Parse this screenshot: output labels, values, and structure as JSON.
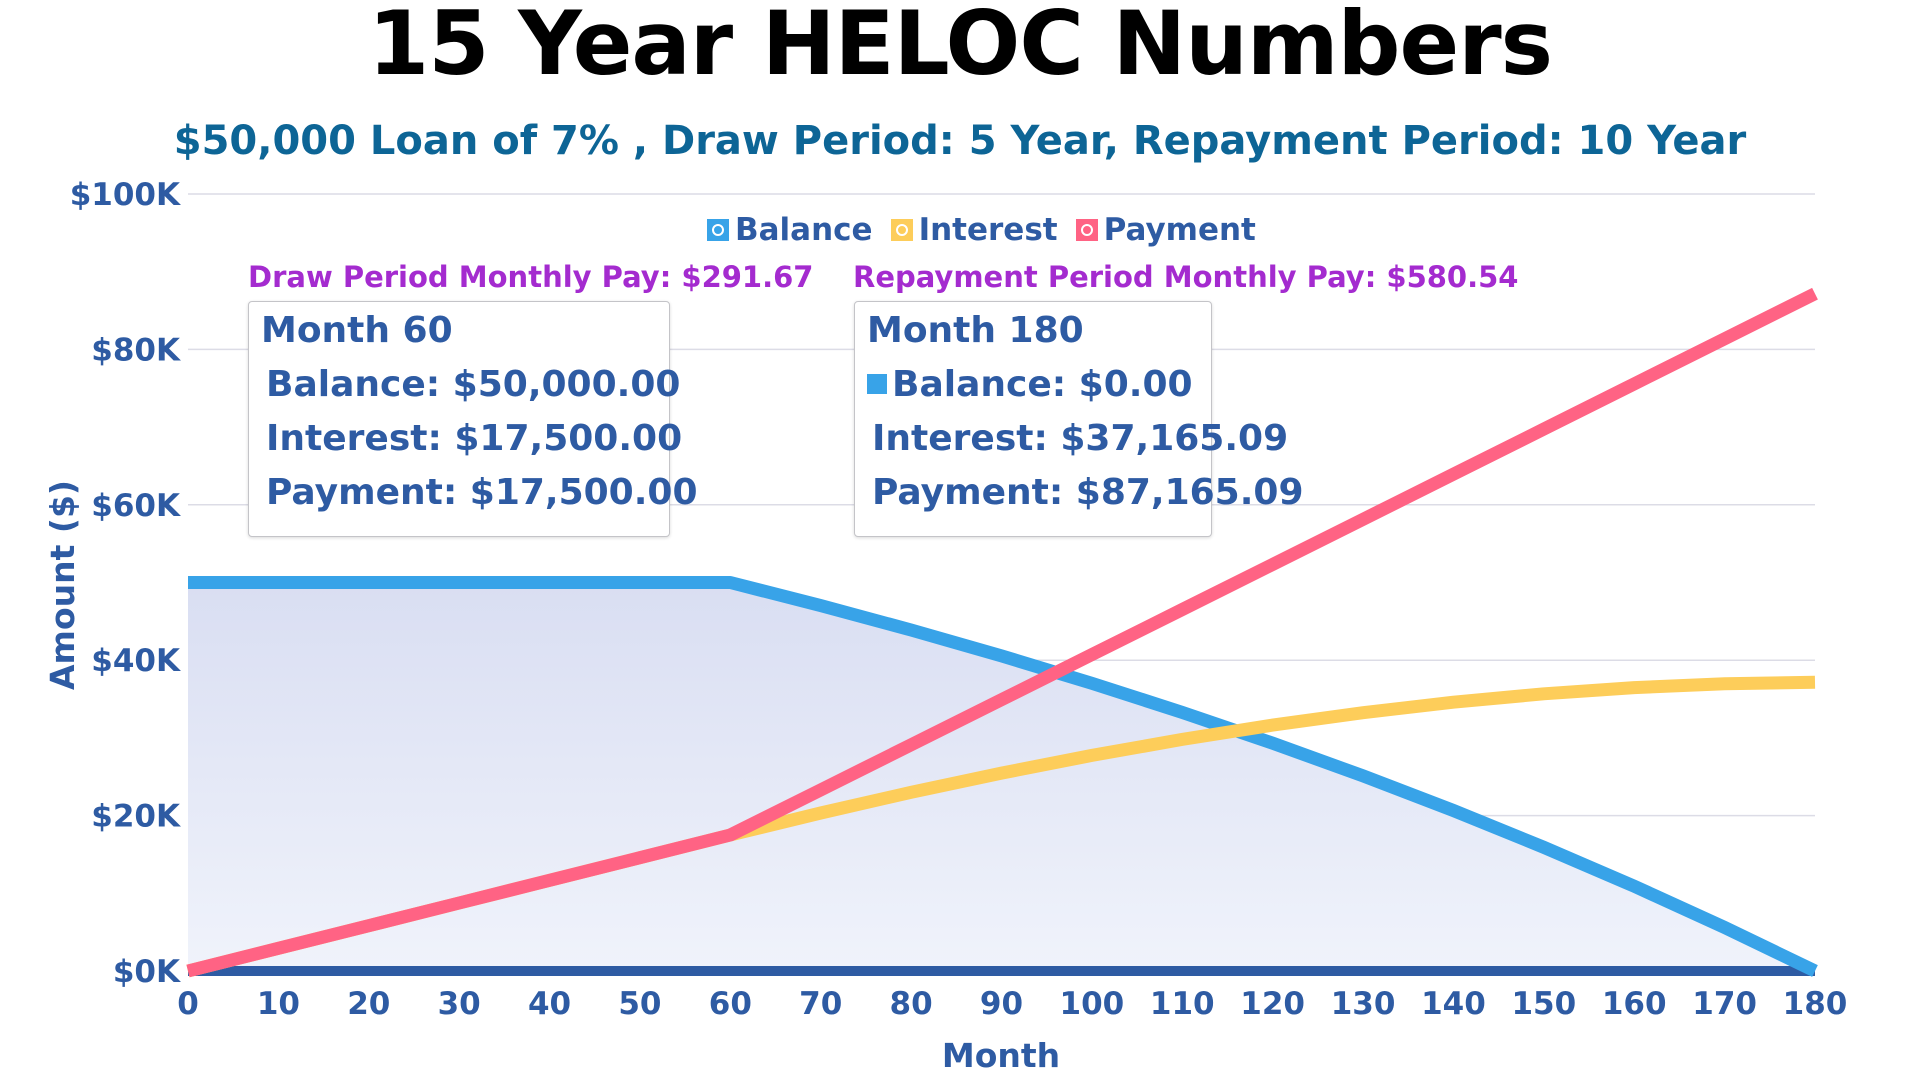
{
  "title": "15 Year HELOC Numbers",
  "subtitle": "$50,000 Loan of 7% , Draw Period: 5 Year, Repayment Period: 10 Year",
  "colors": {
    "balance": "#38a3e8",
    "interest": "#fdcd5a",
    "payment": "#ff6384",
    "axis_text": "#2e5ba3",
    "annotation": "#a42bcf",
    "subtitle": "#0d6596"
  },
  "legend": [
    {
      "label": "Balance",
      "color": "#38a3e8"
    },
    {
      "label": "Interest",
      "color": "#fdcd5a"
    },
    {
      "label": "Payment",
      "color": "#ff6384"
    }
  ],
  "annotations": {
    "draw": "Draw Period Monthly Pay: $291.67",
    "repay": "Repayment Period Monthly Pay: $580.54"
  },
  "tooltips": [
    {
      "title": "Month 60",
      "rows": [
        {
          "label": "Balance: $50,000.00",
          "color": "#38a3e8"
        },
        {
          "label": "Interest: $17,500.00",
          "color": "#fdcd5a"
        },
        {
          "label": "Payment: $17,500.00",
          "color": "#ff6384"
        }
      ]
    },
    {
      "title": "Month 180",
      "rows": [
        {
          "label": "Balance: $0.00",
          "color": "#38a3e8"
        },
        {
          "label": "Interest: $37,165.09",
          "color": "#fdcd5a"
        },
        {
          "label": "Payment: $87,165.09",
          "color": "#ff6384"
        }
      ]
    }
  ],
  "chart_data": {
    "type": "line",
    "title": "15 Year HELOC Numbers",
    "subtitle": "$50,000 Loan of 7% , Draw Period: 5 Year, Repayment Period: 10 Year",
    "xlabel": "Month",
    "ylabel": "Amount ($)",
    "xlim": [
      0,
      180
    ],
    "ylim": [
      0,
      100000
    ],
    "x_ticks": [
      "0",
      "10",
      "20",
      "30",
      "40",
      "50",
      "60",
      "70",
      "80",
      "90",
      "100",
      "110",
      "120",
      "130",
      "140",
      "150",
      "160",
      "170",
      "180"
    ],
    "y_ticks": [
      "$0K",
      "$20K",
      "$40K",
      "$60K",
      "$80K",
      "$100K"
    ],
    "grid": true,
    "legend_position": "top",
    "x": [
      0,
      10,
      20,
      30,
      40,
      50,
      60,
      70,
      80,
      90,
      100,
      110,
      120,
      130,
      140,
      150,
      160,
      170,
      180
    ],
    "series": [
      {
        "name": "Balance",
        "fill": true,
        "values": [
          50000,
          50000,
          50000,
          50000,
          50000,
          50000,
          50000,
          47033,
          43890,
          40557,
          37026,
          33282,
          29312,
          25108,
          20650,
          15926,
          10917,
          5609,
          0
        ]
      },
      {
        "name": "Interest",
        "values": [
          0,
          2917,
          5833,
          8750,
          11667,
          14583,
          17500,
          20338,
          23001,
          25473,
          27748,
          29809,
          31644,
          33246,
          34593,
          35675,
          36471,
          36969,
          37165
        ]
      },
      {
        "name": "Payment",
        "values": [
          0,
          2917,
          5833,
          8750,
          11667,
          14583,
          17500,
          23305,
          29111,
          34916,
          40722,
          46527,
          52332,
          58138,
          63943,
          69749,
          75554,
          81360,
          87165
        ]
      }
    ],
    "annotations": [
      "Draw Period Monthly Pay: $291.67",
      "Repayment Period Monthly Pay: $580.54"
    ]
  }
}
